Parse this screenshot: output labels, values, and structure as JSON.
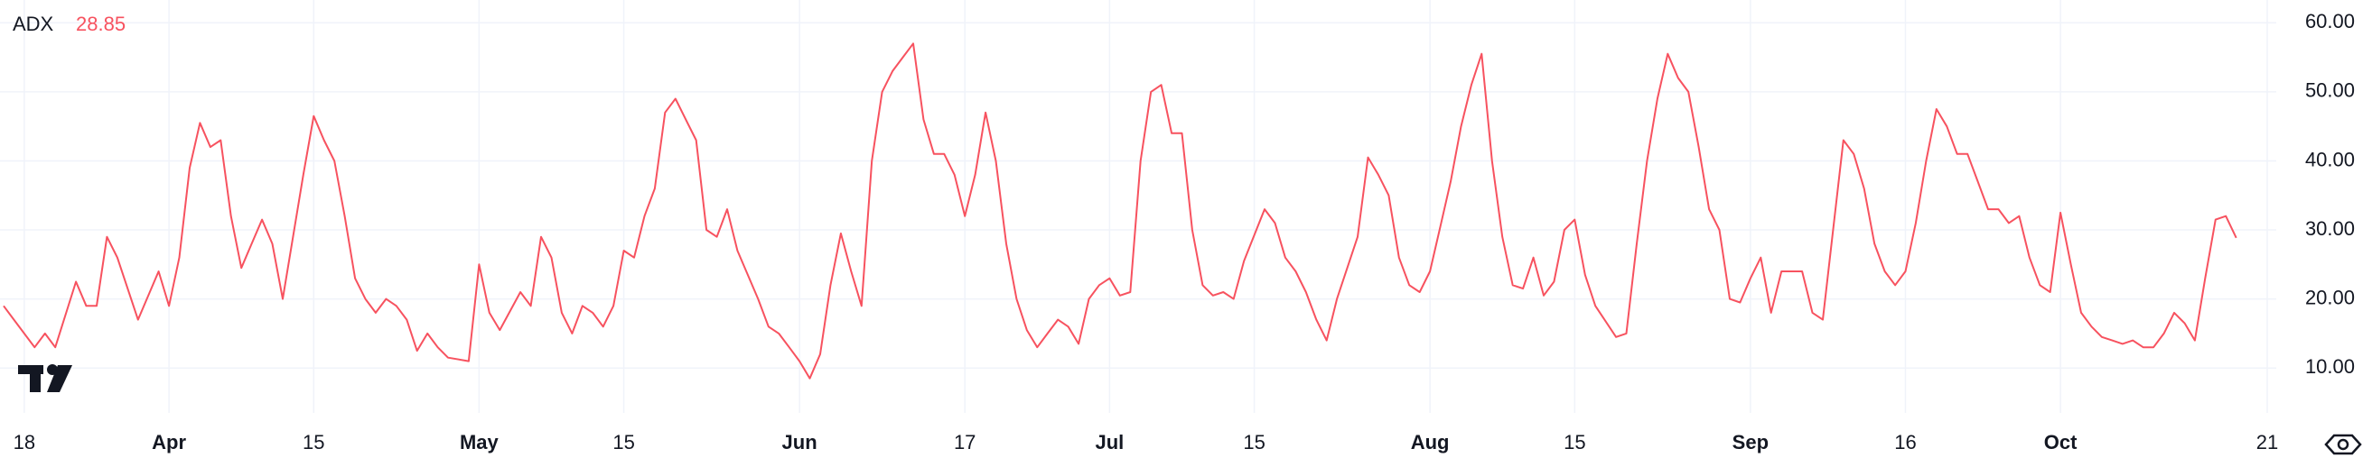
{
  "chart_data": {
    "type": "line",
    "series": [
      {
        "name": "ADX",
        "color": "#f7525f",
        "x": [
          "Mar 16",
          "Mar 17",
          "Mar 19",
          "Mar 20",
          "Mar 21",
          "Mar 23",
          "Mar 24",
          "Mar 25",
          "Mar 26",
          "Mar 27",
          "Mar 29",
          "Mar 31",
          "Apr 1",
          "Apr 2",
          "Apr 3",
          "Apr 4",
          "Apr 5",
          "Apr 6",
          "Apr 7",
          "Apr 8",
          "Apr 9",
          "Apr 10",
          "Apr 11",
          "Apr 12",
          "Apr 14",
          "Apr 15",
          "Apr 16",
          "Apr 17",
          "Apr 18",
          "Apr 19",
          "Apr 20",
          "Apr 21",
          "Apr 22",
          "Apr 23",
          "Apr 24",
          "Apr 25",
          "Apr 26",
          "Apr 27",
          "Apr 28",
          "Apr 30",
          "May 1",
          "May 2",
          "May 3",
          "May 5",
          "May 6",
          "May 7",
          "May 8",
          "May 9",
          "May 10",
          "May 11",
          "May 12",
          "May 13",
          "May 14",
          "May 15",
          "May 16",
          "May 17",
          "May 18",
          "May 19",
          "May 20",
          "May 21",
          "May 22",
          "May 23",
          "May 24",
          "May 25",
          "May 26",
          "May 28",
          "May 29",
          "May 30",
          "May 31",
          "Jun 1",
          "Jun 2",
          "Jun 3",
          "Jun 4",
          "Jun 5",
          "Jun 6",
          "Jun 7",
          "Jun 8",
          "Jun 9",
          "Jun 10",
          "Jun 11",
          "Jun 12",
          "Jun 13",
          "Jun 14",
          "Jun 15",
          "Jun 16",
          "Jun 17",
          "Jun 18",
          "Jun 19",
          "Jun 20",
          "Jun 21",
          "Jun 22",
          "Jun 23",
          "Jun 24",
          "Jun 25",
          "Jun 26",
          "Jun 27",
          "Jun 28",
          "Jun 29",
          "Jun 30",
          "Jul 1",
          "Jul 2",
          "Jul 3",
          "Jul 4",
          "Jul 5",
          "Jul 6",
          "Jul 7",
          "Jul 8",
          "Jul 9",
          "Jul 10",
          "Jul 11",
          "Jul 12",
          "Jul 13",
          "Jul 14",
          "Jul 16",
          "Jul 17",
          "Jul 18",
          "Jul 19",
          "Jul 20",
          "Jul 21",
          "Jul 22",
          "Jul 23",
          "Jul 25",
          "Jul 26",
          "Jul 27",
          "Jul 28",
          "Jul 29",
          "Jul 30",
          "Jul 31",
          "Aug 1",
          "Aug 2",
          "Aug 3",
          "Aug 4",
          "Aug 5",
          "Aug 6",
          "Aug 7",
          "Aug 8",
          "Aug 9",
          "Aug 10",
          "Aug 11",
          "Aug 12",
          "Aug 13",
          "Aug 14",
          "Aug 15",
          "Aug 16",
          "Aug 17",
          "Aug 19",
          "Aug 20",
          "Aug 21",
          "Aug 22",
          "Aug 23",
          "Aug 24",
          "Aug 25",
          "Aug 26",
          "Aug 27",
          "Aug 28",
          "Aug 29",
          "Aug 30",
          "Aug 31",
          "Sep 1",
          "Sep 2",
          "Sep 3",
          "Sep 4",
          "Sep 5",
          "Sep 6",
          "Sep 7",
          "Sep 8",
          "Sep 9",
          "Sep 10",
          "Sep 11",
          "Sep 12",
          "Sep 13",
          "Sep 14",
          "Sep 15",
          "Sep 16",
          "Sep 17",
          "Sep 18",
          "Sep 19",
          "Sep 20",
          "Sep 21",
          "Sep 22",
          "Sep 23",
          "Sep 24",
          "Sep 25",
          "Sep 26",
          "Sep 27",
          "Sep 28",
          "Sep 29",
          "Sep 30",
          "Oct 1",
          "Oct 2",
          "Oct 3",
          "Oct 4",
          "Oct 5",
          "Oct 6",
          "Oct 7",
          "Oct 8",
          "Oct 9",
          "Oct 10",
          "Oct 11",
          "Oct 12",
          "Oct 13",
          "Oct 14",
          "Oct 15",
          "Oct 16",
          "Oct 17",
          "Oct 18"
        ],
        "values": [
          19,
          17,
          13,
          15,
          13,
          22.5,
          19,
          19,
          29,
          26,
          17,
          24,
          19,
          26,
          39,
          45.5,
          42,
          43,
          32,
          24.5,
          28,
          31.5,
          28,
          20,
          38,
          46.5,
          43,
          40,
          32,
          23,
          20,
          18,
          20,
          19,
          17,
          12.5,
          15,
          13,
          11.5,
          11,
          25,
          18,
          15.5,
          21,
          19,
          29,
          26,
          18,
          15,
          19,
          18,
          16,
          19,
          27,
          26,
          32,
          36,
          47,
          49,
          46,
          43,
          30,
          29,
          33,
          27,
          20,
          16,
          15,
          13,
          11,
          8.5,
          12,
          22,
          29.5,
          24,
          19,
          40,
          50,
          53,
          55,
          57,
          46,
          41,
          41,
          38,
          32,
          38,
          47,
          40,
          28,
          20,
          15.5,
          13,
          15,
          17,
          16,
          13.5,
          20,
          22,
          23,
          20.5,
          21,
          40,
          50,
          51,
          44,
          44,
          30,
          22,
          20.5,
          21,
          20,
          25.5,
          33,
          31,
          26,
          24,
          21,
          17,
          14,
          20,
          29,
          40.5,
          38,
          35,
          26,
          22,
          21,
          24,
          30.5,
          37,
          45,
          51,
          55.5,
          40,
          29,
          22,
          21.5,
          26,
          20.5,
          22.5,
          30,
          31.5,
          23.5,
          19,
          14.5,
          15,
          28,
          40,
          49,
          55.5,
          52,
          50,
          42,
          33,
          30,
          20,
          19.5,
          23,
          26,
          18,
          24,
          24,
          24,
          18,
          17,
          30,
          43,
          41,
          36,
          28,
          24,
          22,
          24,
          31,
          40,
          47.5,
          45,
          41,
          41,
          37,
          33,
          33,
          31,
          32,
          26,
          22,
          21,
          32.5,
          25,
          18,
          16,
          14.5,
          14,
          13.5,
          14,
          13,
          13,
          15,
          18,
          16.5,
          14,
          23,
          31.5,
          32,
          28.85
        ]
      }
    ],
    "last_value": 28.85,
    "xlim": [
      "Mar 16",
      "Oct 21"
    ],
    "xticks": [
      {
        "value": "Mar 18",
        "label": "18"
      },
      {
        "value": "Apr 1",
        "label": "Apr"
      },
      {
        "value": "Apr 15",
        "label": "15"
      },
      {
        "value": "May 1",
        "label": "May"
      },
      {
        "value": "May 15",
        "label": "15"
      },
      {
        "value": "Jun 1",
        "label": "Jun"
      },
      {
        "value": "Jun 17",
        "label": "17"
      },
      {
        "value": "Jul 1",
        "label": "Jul"
      },
      {
        "value": "Jul 15",
        "label": "15"
      },
      {
        "value": "Aug 1",
        "label": "Aug"
      },
      {
        "value": "Aug 15",
        "label": "15"
      },
      {
        "value": "Sep 1",
        "label": "Sep"
      },
      {
        "value": "Sep 16",
        "label": "16"
      },
      {
        "value": "Oct 1",
        "label": "Oct"
      },
      {
        "value": "Oct 21",
        "label": "21"
      }
    ],
    "ylim": [
      3.5,
      63.3
    ],
    "yticks": [
      {
        "value": 10,
        "label": "10.00"
      },
      {
        "value": 20,
        "label": "20.00"
      },
      {
        "value": 30,
        "label": "30.00"
      },
      {
        "value": 40,
        "label": "40.00"
      },
      {
        "value": 50,
        "label": "50.00"
      },
      {
        "value": 60,
        "label": "60.00"
      }
    ],
    "grid": true
  }
}
